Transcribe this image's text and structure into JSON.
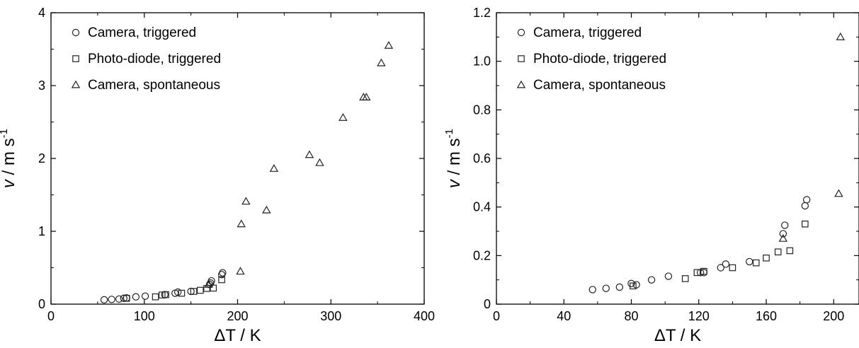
{
  "chart_data": [
    {
      "type": "scatter",
      "xlabel": "ΔT / K",
      "ylabel": "v / m s-1",
      "ylabel_parts": {
        "var": "v",
        "unit": " / m s",
        "exp": "-1"
      },
      "xlim": [
        0,
        400
      ],
      "ylim": [
        0,
        4
      ],
      "xticks": [
        0,
        100,
        200,
        300,
        400
      ],
      "yticks": [
        0,
        1,
        2,
        3,
        4
      ],
      "grid": false,
      "legend_position": "top-left",
      "series": [
        {
          "name": "Camera, triggered",
          "marker": "circle",
          "points": [
            [
              57,
              0.06
            ],
            [
              65,
              0.065
            ],
            [
              73,
              0.07
            ],
            [
              78,
              0.08
            ],
            [
              81,
              0.085
            ],
            [
              91,
              0.1
            ],
            [
              101,
              0.11
            ],
            [
              122,
              0.13
            ],
            [
              133,
              0.15
            ],
            [
              136,
              0.165
            ],
            [
              150,
              0.175
            ],
            [
              170,
              0.27
            ],
            [
              171,
              0.29
            ],
            [
              172,
              0.32
            ],
            [
              183,
              0.405
            ],
            [
              184,
              0.43
            ]
          ]
        },
        {
          "name": "Photo-diode, triggered",
          "marker": "square",
          "points": [
            [
              81,
              0.08
            ],
            [
              112,
              0.1
            ],
            [
              119,
              0.125
            ],
            [
              123,
              0.13
            ],
            [
              140,
              0.15
            ],
            [
              153,
              0.175
            ],
            [
              160,
              0.19
            ],
            [
              167,
              0.215
            ],
            [
              174,
              0.22
            ],
            [
              183,
              0.335
            ]
          ]
        },
        {
          "name": "Camera, spontaneous",
          "marker": "triangle",
          "points": [
            [
              169,
              0.27
            ],
            [
              203,
              0.45
            ],
            [
              204,
              1.1
            ],
            [
              209,
              1.41
            ],
            [
              231,
              1.29
            ],
            [
              239,
              1.86
            ],
            [
              277,
              2.05
            ],
            [
              288,
              1.94
            ],
            [
              313,
              2.56
            ],
            [
              335,
              2.84
            ],
            [
              338,
              2.84
            ],
            [
              354,
              3.31
            ],
            [
              362,
              3.55
            ]
          ]
        }
      ]
    },
    {
      "type": "scatter",
      "xlabel": "ΔT / K",
      "ylabel": "v / m s-1",
      "ylabel_parts": {
        "var": "v",
        "unit": " / m s",
        "exp": "-1"
      },
      "xlim": [
        0,
        215
      ],
      "ylim": [
        0,
        1.2
      ],
      "xticks": [
        0,
        40,
        80,
        120,
        160,
        200
      ],
      "yticks": [
        0,
        0.2,
        0.4,
        0.6,
        0.8,
        1.0,
        1.2
      ],
      "ytick_labels": [
        "0",
        "0.2",
        "0.4",
        "0.6",
        "0.8",
        "1.0",
        "1.2"
      ],
      "grid": false,
      "legend_position": "top-left",
      "series": [
        {
          "name": "Camera, triggered",
          "marker": "circle",
          "points": [
            [
              57,
              0.06
            ],
            [
              65,
              0.065
            ],
            [
              73,
              0.07
            ],
            [
              80,
              0.085
            ],
            [
              83,
              0.08
            ],
            [
              92,
              0.1
            ],
            [
              102,
              0.115
            ],
            [
              121,
              0.13
            ],
            [
              123,
              0.13
            ],
            [
              133,
              0.15
            ],
            [
              136,
              0.165
            ],
            [
              150,
              0.175
            ],
            [
              170,
              0.29
            ],
            [
              171,
              0.325
            ],
            [
              183,
              0.405
            ],
            [
              184,
              0.43
            ]
          ]
        },
        {
          "name": "Photo-diode, triggered",
          "marker": "square",
          "points": [
            [
              81,
              0.075
            ],
            [
              112,
              0.105
            ],
            [
              119,
              0.13
            ],
            [
              123,
              0.135
            ],
            [
              140,
              0.15
            ],
            [
              154,
              0.17
            ],
            [
              160,
              0.19
            ],
            [
              167,
              0.215
            ],
            [
              174,
              0.22
            ],
            [
              183,
              0.33
            ]
          ]
        },
        {
          "name": "Camera, spontaneous",
          "marker": "triangle",
          "points": [
            [
              170,
              0.27
            ],
            [
              203,
              0.455
            ],
            [
              204,
              1.1
            ]
          ]
        }
      ]
    }
  ]
}
